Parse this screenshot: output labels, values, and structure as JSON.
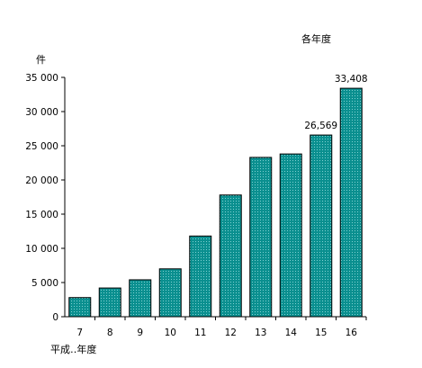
{
  "chart_data": {
    "type": "bar",
    "title": "各年度",
    "ylabel": "件",
    "xlabel": "平成‥年度",
    "categories": [
      "7",
      "8",
      "9",
      "10",
      "11",
      "12",
      "13",
      "14",
      "15",
      "16"
    ],
    "values": [
      2800,
      4200,
      5400,
      7000,
      11800,
      17800,
      23300,
      23800,
      26569,
      33408
    ],
    "ylim": [
      0,
      35000
    ],
    "yticks": [
      0,
      5000,
      10000,
      15000,
      20000,
      25000,
      30000,
      35000
    ],
    "ytick_labels": [
      "0",
      "5 000",
      "10 000",
      "15 000",
      "20 000",
      "25 000",
      "30 000",
      "35 000"
    ],
    "data_labels": [
      {
        "index": 8,
        "text": "26,569"
      },
      {
        "index": 9,
        "text": "33,408"
      }
    ],
    "grid": false,
    "bar_color": "#009090",
    "bar_pattern": "dotted"
  }
}
